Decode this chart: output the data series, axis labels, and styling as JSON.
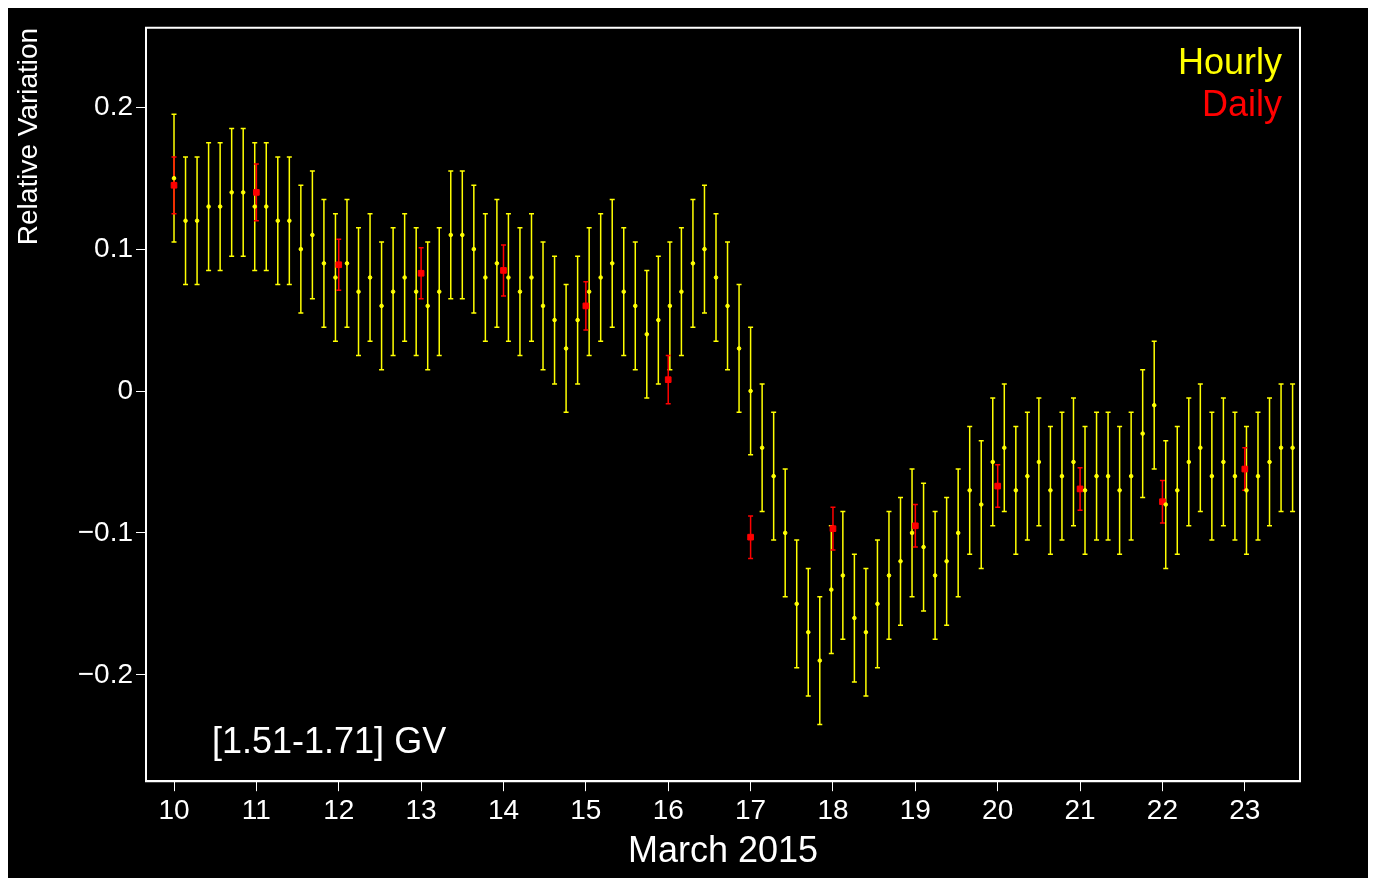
{
  "chart_data": {
    "type": "scatter",
    "xlabel": "March 2015",
    "ylabel": "Relative Variation",
    "annotations": [
      "[1.51-1.71] GV"
    ],
    "xlim": [
      9.66,
      23.67
    ],
    "xticks": [
      10,
      11,
      12,
      13,
      14,
      15,
      16,
      17,
      18,
      19,
      20,
      21,
      22,
      23
    ],
    "ylim": [
      -0.275,
      0.256
    ],
    "yticks": [
      -0.2,
      -0.1,
      0,
      0.1,
      0.2
    ],
    "grid": false,
    "legend": "top right",
    "series": [
      {
        "name": "Hourly",
        "color": "#ffff00",
        "marker": "circle",
        "x": [
          10,
          10.14,
          10.28,
          10.42,
          10.56,
          10.7,
          10.84,
          10.98,
          11.12,
          11.26,
          11.4,
          11.54,
          11.68,
          11.82,
          11.96,
          12.1,
          12.24,
          12.38,
          12.52,
          12.66,
          12.8,
          12.94,
          13.08,
          13.22,
          13.36,
          13.5,
          13.64,
          13.78,
          13.92,
          14.06,
          14.2,
          14.34,
          14.48,
          14.62,
          14.76,
          14.9,
          15.04,
          15.18,
          15.32,
          15.46,
          15.6,
          15.74,
          15.88,
          16.02,
          16.16,
          16.3,
          16.44,
          16.58,
          16.72,
          16.86,
          17,
          17.14,
          17.28,
          17.42,
          17.56,
          17.7,
          17.84,
          17.98,
          18.12,
          18.26,
          18.4,
          18.54,
          18.68,
          18.82,
          18.96,
          19.1,
          19.24,
          19.38,
          19.52,
          19.66,
          19.8,
          19.94,
          20.08,
          20.22,
          20.36,
          20.5,
          20.64,
          20.78,
          20.92,
          21.06,
          21.2,
          21.34,
          21.48,
          21.62,
          21.76,
          21.9,
          22.04,
          22.18,
          22.32,
          22.46,
          22.6,
          22.74,
          22.88,
          23.02,
          23.16,
          23.3,
          23.44,
          23.58
        ],
        "values": [
          0.15,
          0.12,
          0.12,
          0.13,
          0.13,
          0.14,
          0.14,
          0.13,
          0.13,
          0.12,
          0.12,
          0.1,
          0.11,
          0.09,
          0.08,
          0.09,
          0.07,
          0.08,
          0.06,
          0.07,
          0.08,
          0.07,
          0.06,
          0.07,
          0.11,
          0.11,
          0.1,
          0.08,
          0.09,
          0.08,
          0.07,
          0.08,
          0.06,
          0.05,
          0.03,
          0.05,
          0.07,
          0.08,
          0.09,
          0.07,
          0.06,
          0.04,
          0.05,
          0.06,
          0.07,
          0.09,
          0.1,
          0.08,
          0.06,
          0.03,
          0.0,
          -0.04,
          -0.06,
          -0.1,
          -0.15,
          -0.17,
          -0.19,
          -0.14,
          -0.13,
          -0.16,
          -0.17,
          -0.15,
          -0.13,
          -0.12,
          -0.1,
          -0.11,
          -0.13,
          -0.12,
          -0.1,
          -0.07,
          -0.08,
          -0.05,
          -0.04,
          -0.07,
          -0.06,
          -0.05,
          -0.07,
          -0.06,
          -0.05,
          -0.07,
          -0.06,
          -0.06,
          -0.07,
          -0.06,
          -0.03,
          -0.01,
          -0.08,
          -0.07,
          -0.05,
          -0.04,
          -0.06,
          -0.05,
          -0.06,
          -0.07,
          -0.06,
          -0.05,
          -0.04,
          -0.04
        ],
        "errors": [
          0.045,
          0.045,
          0.045,
          0.045,
          0.045,
          0.045,
          0.045,
          0.045,
          0.045,
          0.045,
          0.045,
          0.045,
          0.045,
          0.045,
          0.045,
          0.045,
          0.045,
          0.045,
          0.045,
          0.045,
          0.045,
          0.045,
          0.045,
          0.045,
          0.045,
          0.045,
          0.045,
          0.045,
          0.045,
          0.045,
          0.045,
          0.045,
          0.045,
          0.045,
          0.045,
          0.045,
          0.045,
          0.045,
          0.045,
          0.045,
          0.045,
          0.045,
          0.045,
          0.045,
          0.045,
          0.045,
          0.045,
          0.045,
          0.045,
          0.045,
          0.045,
          0.045,
          0.045,
          0.045,
          0.045,
          0.045,
          0.045,
          0.045,
          0.045,
          0.045,
          0.045,
          0.045,
          0.045,
          0.045,
          0.045,
          0.045,
          0.045,
          0.045,
          0.045,
          0.045,
          0.045,
          0.045,
          0.045,
          0.045,
          0.045,
          0.045,
          0.045,
          0.045,
          0.045,
          0.045,
          0.045,
          0.045,
          0.045,
          0.045,
          0.045,
          0.045,
          0.045,
          0.045,
          0.045,
          0.045,
          0.045,
          0.045,
          0.045,
          0.045,
          0.045,
          0.045,
          0.045,
          0.045
        ]
      },
      {
        "name": "Daily",
        "color": "#ff0000",
        "marker": "square",
        "x": [
          10,
          11,
          12,
          13,
          14,
          15,
          16,
          17,
          18,
          19,
          20,
          21,
          22,
          23
        ],
        "values": [
          0.145,
          0.14,
          0.089,
          0.083,
          0.085,
          0.06,
          0.008,
          -0.103,
          -0.097,
          -0.095,
          -0.067,
          -0.069,
          -0.078,
          -0.055
        ],
        "errors": [
          0.02,
          0.02,
          0.018,
          0.018,
          0.018,
          0.017,
          0.017,
          0.015,
          0.015,
          0.015,
          0.015,
          0.015,
          0.015,
          0.015
        ]
      }
    ]
  }
}
